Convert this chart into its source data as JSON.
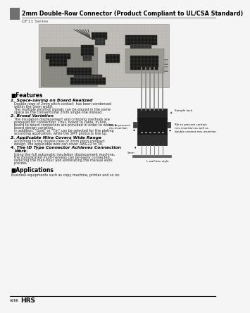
{
  "title": "2mm Double-Row Connector (Product Compliant to UL/CSA Standard)",
  "series_name": "DF11 Series",
  "bg_color": "#f5f5f5",
  "header_bar_color": "#707070",
  "footer_text_left": "A266",
  "footer_brand": "HRS",
  "features_title": "■Features",
  "features": [
    {
      "num": "1.",
      "heading": "Space-saving on Board Realized",
      "body": "Double rows of 2mm pitch contact  has been condensed\nwithin the 5mm width.\nThe multiple pins/hot signals can be placed in the same\nspace as the conventional 2mm single line instead."
    },
    {
      "num": "2.",
      "heading": "Broad Variation",
      "body": "The insulation displacement and crimping methods are\nprepared for connection. Thus, board to cable, in-line,\nboard to board connectors are provided in order to widen a\nboard design variation.\nIn addition, \"Gold\" or \"Tin\" can be selected for the plating\naccording application, while the SMT products line up."
    },
    {
      "num": "3.",
      "heading": "Applicable Wire Covers Wide Range",
      "body": "According to the double rows of 2mm pitch compact\ndesign, the applicable wire can cover AWG22 to 30."
    },
    {
      "num": "4.",
      "heading": "The ID Type Connector Achieves Connection\nWork.",
      "body": "Using the full automatic insulation displacement machine,\nthe complicated multi-harness can be easily connected,\nreducing the man-hour and eliminating the manual work\nprocess."
    }
  ],
  "applications_title": "■Applications",
  "applications_body": "Business equipments such as copy machine, printer and so on.",
  "photo_bg": "#c0bdb8",
  "photo_grid": "#a8a8a0",
  "ann1": "Rib to prevent\nmis-insertion",
  "ann2": "Sample lock",
  "ann3": "Rib to prevent contact\nmis-insertion as well as\ndouble contact mis-insertion",
  "ann4": "5mm",
  "ann5": "L wall box style"
}
